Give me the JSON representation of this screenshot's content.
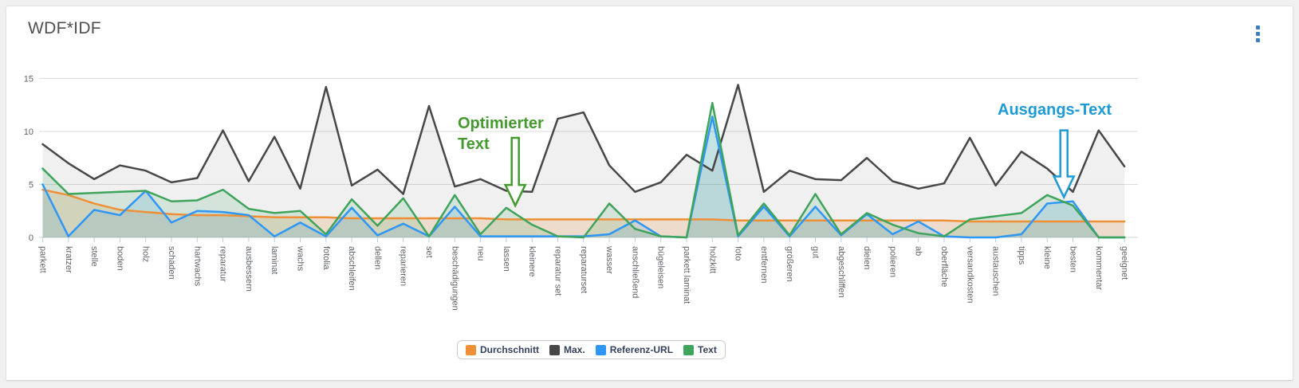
{
  "card": {
    "title": "WDF*IDF",
    "menu_icon": "kebab-menu-icon",
    "menu_color": "#3b7ec0"
  },
  "chart_data": {
    "type": "area",
    "title": "WDF*IDF",
    "xlabel": "",
    "ylabel": "",
    "ylim": [
      0,
      15
    ],
    "yticks": [
      0,
      5,
      10,
      15
    ],
    "grid": true,
    "legend_position": "bottom",
    "legend": {
      "text_color": "#33415c",
      "border_color": "#cccccc"
    },
    "axis": {
      "grid_color": "#dcdcdc",
      "line_color": "#cdd2d6",
      "tick_color": "#b7cee3",
      "label_color": "#5f6368"
    },
    "categories": [
      "parkett",
      "kratzer",
      "stelle",
      "boden",
      "holz",
      "schäden",
      "hartwachs",
      "reparatur",
      "ausbessern",
      "laminat",
      "wachs",
      "fotolia",
      "abschleifen",
      "dellen",
      "reparieren",
      "set",
      "beschädigungen",
      "neu",
      "lassen",
      "kleinere",
      "reparatur set",
      "reparaturset",
      "wasser",
      "anschließend",
      "bügeleisen",
      "parkett laminat",
      "holzkitt",
      "foto",
      "entfernen",
      "größeren",
      "gut",
      "abgeschliffen",
      "dielen",
      "polieren",
      "ab",
      "oberfläche",
      "versandkosten",
      "austauschen",
      "tipps",
      "kleine",
      "besten",
      "kommentar",
      "geeignet"
    ],
    "series": [
      {
        "name": "Durchschnitt",
        "color": "#ef9036",
        "fill": "rgba(239,144,54,0.20)",
        "values": [
          4.5,
          4.0,
          3.2,
          2.6,
          2.4,
          2.2,
          2.1,
          2.1,
          2.0,
          1.9,
          1.9,
          1.9,
          1.8,
          1.8,
          1.8,
          1.8,
          1.8,
          1.8,
          1.7,
          1.7,
          1.7,
          1.7,
          1.7,
          1.7,
          1.7,
          1.7,
          1.7,
          1.6,
          1.6,
          1.6,
          1.6,
          1.6,
          1.6,
          1.6,
          1.6,
          1.6,
          1.5,
          1.5,
          1.5,
          1.5,
          1.5,
          1.5,
          1.5
        ]
      },
      {
        "name": "Max.",
        "color": "#474747",
        "fill": "rgba(110,110,110,0.10)",
        "values": [
          8.8,
          7.0,
          5.5,
          6.8,
          6.3,
          5.2,
          5.6,
          10.1,
          5.3,
          9.5,
          4.6,
          14.2,
          4.9,
          6.4,
          4.1,
          12.4,
          4.8,
          5.5,
          4.4,
          4.3,
          11.2,
          11.8,
          6.8,
          4.3,
          5.2,
          7.8,
          6.3,
          14.4,
          4.3,
          6.3,
          5.5,
          5.4,
          7.5,
          5.3,
          4.6,
          5.1,
          9.4,
          4.9,
          8.1,
          6.5,
          4.3,
          10.1,
          6.7
        ]
      },
      {
        "name": "Referenz-URL",
        "color": "#2e96f5",
        "fill": "rgba(46,150,245,0.16)",
        "values": [
          5.0,
          0.1,
          2.6,
          2.1,
          4.4,
          1.4,
          2.5,
          2.4,
          2.1,
          0.1,
          1.4,
          0.1,
          2.8,
          0.2,
          1.3,
          0.1,
          2.9,
          0.1,
          0.1,
          0.1,
          0.1,
          0.1,
          0.3,
          1.6,
          0.1,
          0.0,
          11.4,
          0.1,
          2.9,
          0.1,
          2.9,
          0.2,
          2.2,
          0.3,
          1.5,
          0.1,
          0.0,
          0.0,
          0.3,
          3.2,
          3.4,
          0.0,
          0.0
        ]
      },
      {
        "name": "Text",
        "color": "#3fa45b",
        "fill": "rgba(63,164,91,0.15)",
        "values": [
          6.5,
          4.1,
          4.2,
          4.3,
          4.4,
          3.4,
          3.5,
          4.5,
          2.7,
          2.3,
          2.5,
          0.3,
          3.6,
          1.1,
          3.7,
          0.1,
          4.0,
          0.3,
          2.8,
          1.2,
          0.1,
          0.0,
          3.2,
          0.8,
          0.1,
          0.0,
          12.7,
          0.2,
          3.2,
          0.2,
          4.1,
          0.3,
          2.3,
          1.2,
          0.4,
          0.1,
          1.7,
          2.0,
          2.3,
          4.0,
          3.0,
          0.0,
          0.0
        ]
      }
    ],
    "annotations": [
      {
        "text": "Optimierter Text",
        "color": "#44992f",
        "target_series": "Text",
        "target_category": "lassen",
        "arrow": {
          "x_index": 18.35,
          "top_value": 9.4,
          "tip_value": 3.0
        }
      },
      {
        "text": "Ausgangs-Text",
        "color": "#1e9bd7",
        "target_series": "Referenz-URL",
        "target_category": "besten",
        "arrow": {
          "x_index": 39.65,
          "top_value": 10.1,
          "tip_value": 3.8
        }
      }
    ]
  }
}
